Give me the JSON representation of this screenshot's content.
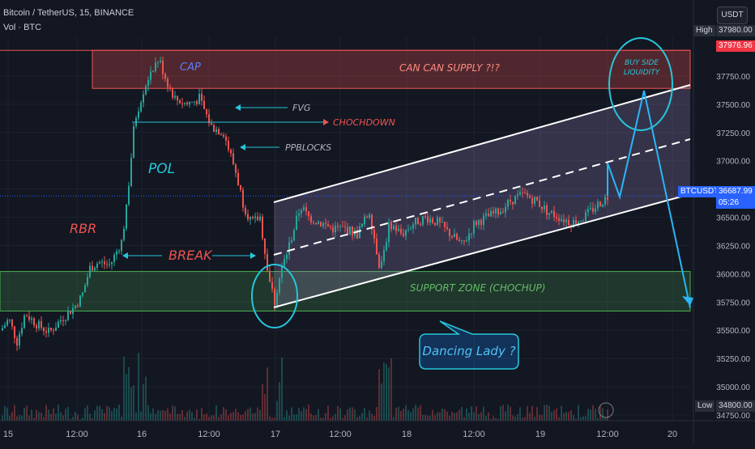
{
  "header": {
    "symbol": "Bitcoin / TetherUS, 15, BINANCE",
    "volume": "Vol · BTC",
    "currency_button": "USDT"
  },
  "price_tags": {
    "high_label": "High",
    "high_value": "37980.00",
    "cap_value": "37976.96",
    "ticker_label": "BTCUSDT",
    "last_price": "36687.99",
    "countdown": "05:26",
    "low_label": "Low",
    "low_value": "34800.00"
  },
  "annotations": {
    "cap": "CAP",
    "supply": "CAN CAN SUPPLY ?!?",
    "fvg": "FVG",
    "chochdown": "CHOCHDOWN",
    "ppblocks": "PPBLOCKS",
    "pol": "POL",
    "rbr": "RBR",
    "break": "BREAK",
    "buy_side_1": "BUY SIDE",
    "buy_side_2": "LIQUIDITY",
    "support": "SUPPORT ZONE (CHOCHUP)",
    "dancing": "Dancing Lady ?"
  },
  "colors": {
    "background": "#131722",
    "up": "#26a69a",
    "down": "#ef5350",
    "supply_zone": "#ef5350",
    "support_zone": "#4caf50",
    "channel": "#ffffff",
    "liquidity_circle": "#26c6da",
    "price_line": "#2962ff"
  },
  "chart_data": {
    "type": "candlestick",
    "symbol": "BTCUSDT",
    "interval": "15",
    "x_tick_labels": [
      "15",
      "12:00",
      "16",
      "12:00",
      "17",
      "12:00",
      "18",
      "12:00",
      "19",
      "12:00",
      "20"
    ],
    "y_tick_labels": [
      "37750.00",
      "37500.00",
      "37250.00",
      "37000.00",
      "36750.00",
      "36500.00",
      "36250.00",
      "36000.00",
      "35750.00",
      "35500.00",
      "35250.00",
      "35000.00",
      "34750.00"
    ],
    "ylim": [
      34700,
      38100
    ],
    "high": 37980.0,
    "low": 34800.0,
    "last_price": 36687.99,
    "zones": {
      "supply": [
        37640,
        37976.96
      ],
      "support": [
        35670,
        36020
      ]
    },
    "price_path": [
      [
        0,
        35500
      ],
      [
        10,
        35600
      ],
      [
        20,
        35400
      ],
      [
        30,
        35650
      ],
      [
        45,
        35550
      ],
      [
        60,
        35480
      ],
      [
        75,
        35600
      ],
      [
        90,
        35700
      ],
      [
        100,
        35800
      ],
      [
        110,
        36050
      ],
      [
        120,
        36100
      ],
      [
        135,
        36080
      ],
      [
        150,
        36300
      ],
      [
        158,
        36800
      ],
      [
        165,
        37350
      ],
      [
        175,
        37600
      ],
      [
        185,
        37800
      ],
      [
        195,
        37900
      ],
      [
        205,
        37700
      ],
      [
        215,
        37550
      ],
      [
        230,
        37500
      ],
      [
        245,
        37550
      ],
      [
        260,
        37300
      ],
      [
        275,
        37250
      ],
      [
        290,
        36900
      ],
      [
        300,
        36600
      ],
      [
        310,
        36450
      ],
      [
        320,
        36500
      ],
      [
        330,
        36000
      ],
      [
        338,
        35750
      ],
      [
        345,
        36000
      ],
      [
        358,
        36300
      ],
      [
        370,
        36600
      ],
      [
        380,
        36500
      ],
      [
        395,
        36450
      ],
      [
        410,
        36400
      ],
      [
        425,
        36400
      ],
      [
        440,
        36350
      ],
      [
        455,
        36550
      ],
      [
        468,
        36050
      ],
      [
        480,
        36450
      ],
      [
        495,
        36350
      ],
      [
        510,
        36450
      ],
      [
        525,
        36500
      ],
      [
        540,
        36450
      ],
      [
        555,
        36350
      ],
      [
        570,
        36250
      ],
      [
        585,
        36450
      ],
      [
        600,
        36500
      ],
      [
        615,
        36550
      ],
      [
        630,
        36650
      ],
      [
        645,
        36700
      ],
      [
        660,
        36650
      ],
      [
        675,
        36550
      ],
      [
        690,
        36500
      ],
      [
        705,
        36450
      ],
      [
        720,
        36500
      ],
      [
        735,
        36600
      ],
      [
        750,
        36690
      ]
    ],
    "projection": [
      [
        750,
        36690
      ],
      [
        750,
        36980
      ],
      [
        765,
        36680
      ],
      [
        795,
        37620
      ],
      [
        852,
        35700
      ]
    ]
  }
}
